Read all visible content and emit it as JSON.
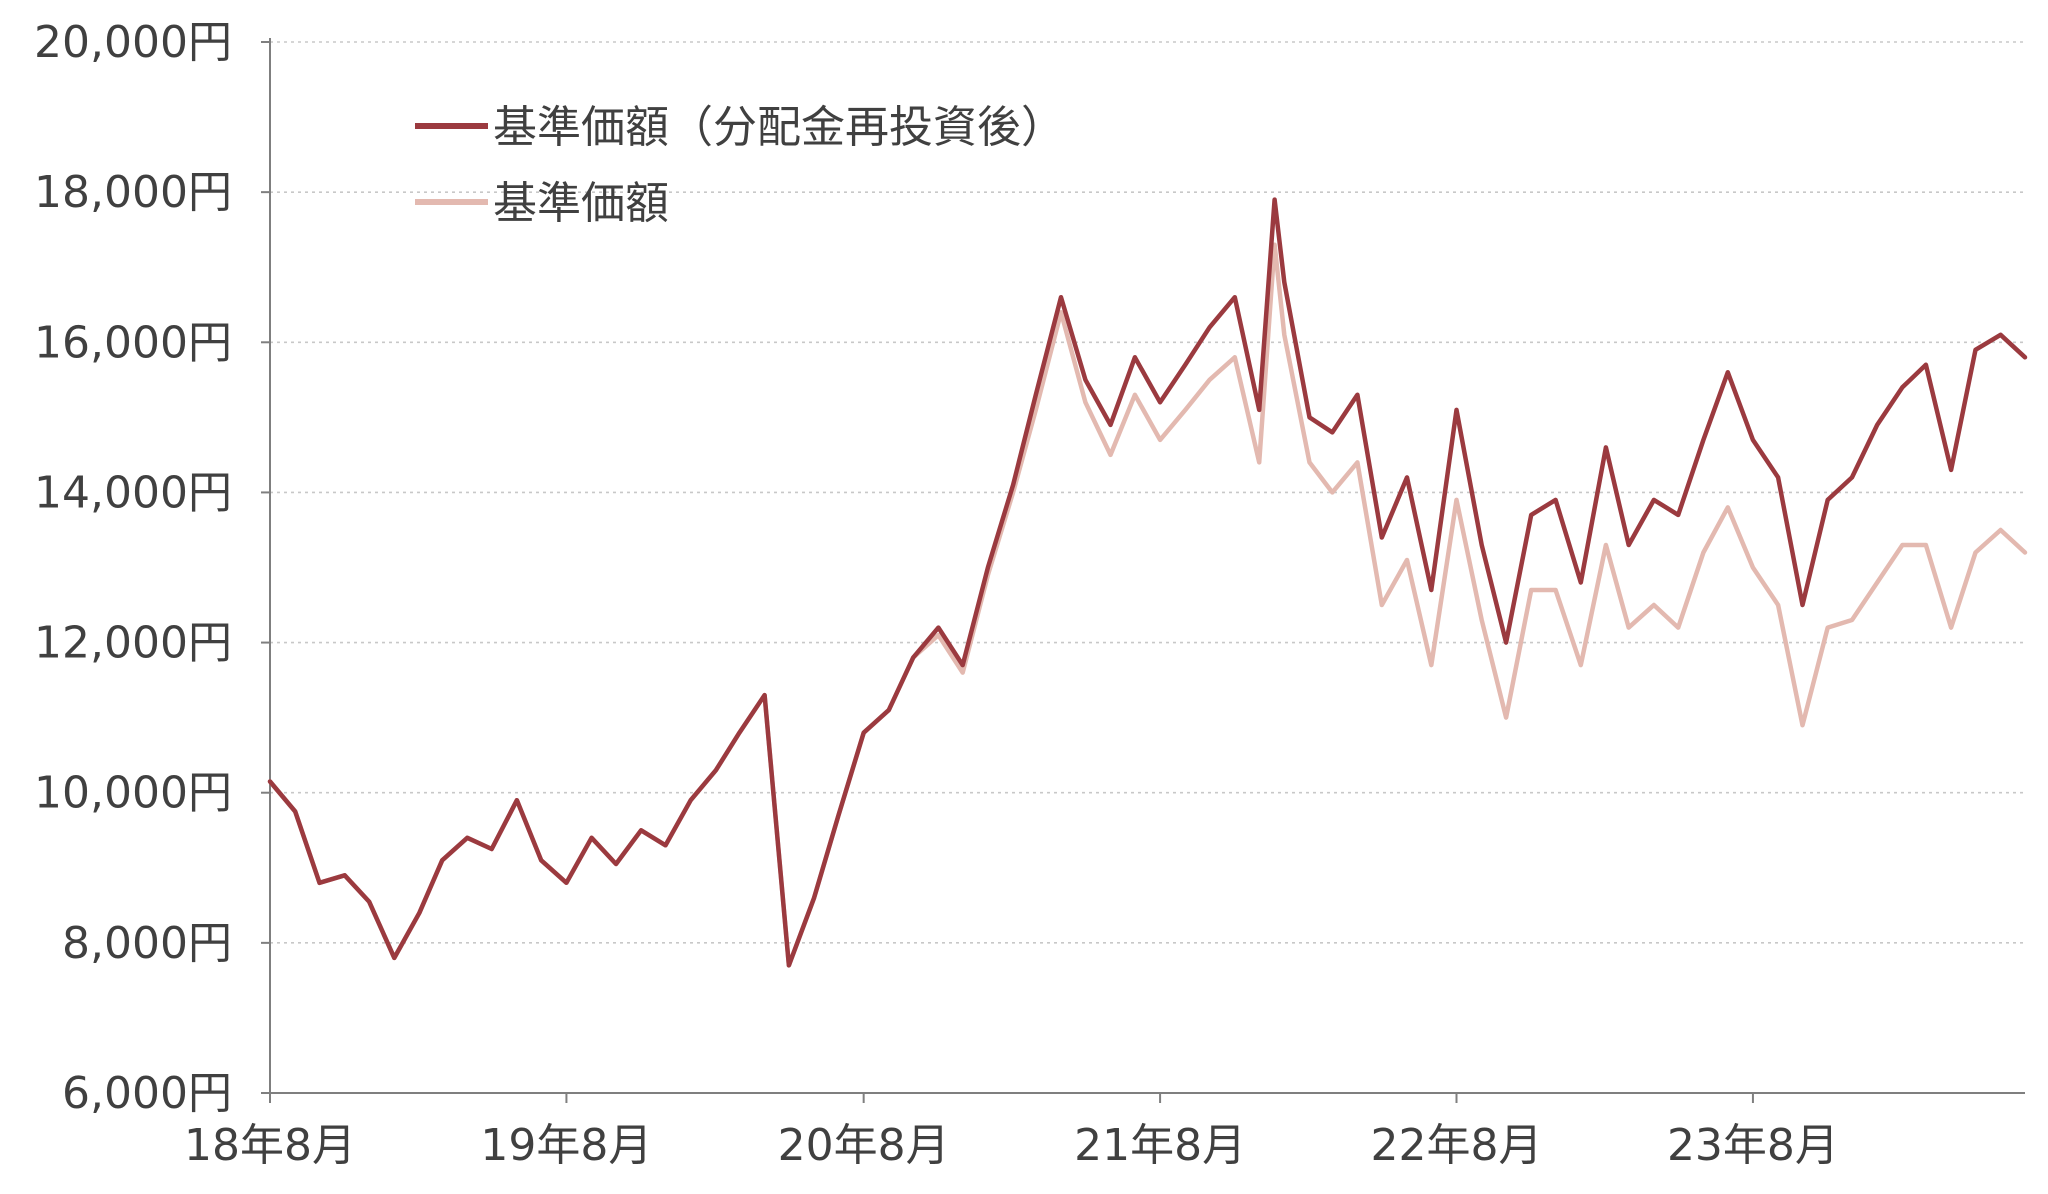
{
  "chart_data": {
    "type": "line",
    "ylim": [
      6000,
      20000
    ],
    "yticks": [
      {
        "value": 6000,
        "label": "6,000円"
      },
      {
        "value": 8000,
        "label": "8,000円"
      },
      {
        "value": 10000,
        "label": "10,000円"
      },
      {
        "value": 12000,
        "label": "12,000円"
      },
      {
        "value": 14000,
        "label": "14,000円"
      },
      {
        "value": 16000,
        "label": "16,000円"
      },
      {
        "value": 18000,
        "label": "18,000円"
      },
      {
        "value": 20000,
        "label": "20,000円"
      }
    ],
    "xlim": [
      "2018-08",
      "2024-07"
    ],
    "xticks": [
      {
        "value": "2018-08",
        "label": "18年8月"
      },
      {
        "value": "2019-08",
        "label": "19年8月"
      },
      {
        "value": "2020-08",
        "label": "20年8月"
      },
      {
        "value": "2021-08",
        "label": "21年8月"
      },
      {
        "value": "2022-08",
        "label": "22年8月"
      },
      {
        "value": "2023-08",
        "label": "23年8月"
      }
    ],
    "grid": true,
    "legend_position": "top-left",
    "series": [
      {
        "name": "基準価額（分配金再投資後）",
        "color": "#9b3a3f",
        "points": [
          [
            "2018-08",
            10150
          ],
          [
            "2018-09",
            9750
          ],
          [
            "2018-10",
            8800
          ],
          [
            "2018-11",
            8900
          ],
          [
            "2018-12",
            8550
          ],
          [
            "2019-01",
            7800
          ],
          [
            "2019-02",
            8400
          ],
          [
            "2019-03",
            9100
          ],
          [
            "2019-04",
            9400
          ],
          [
            "2019-05",
            9250
          ],
          [
            "2019-06",
            9900
          ],
          [
            "2019-07",
            9100
          ],
          [
            "2019-08",
            8800
          ],
          [
            "2019-09",
            9400
          ],
          [
            "2019-10",
            9050
          ],
          [
            "2019-11",
            9500
          ],
          [
            "2019-12",
            9300
          ],
          [
            "2020-01",
            9900
          ],
          [
            "2020-02",
            10300
          ],
          [
            "2020-03",
            10800
          ],
          [
            "2020-04",
            11300
          ],
          [
            "2020-05",
            7700
          ],
          [
            "2020-06",
            8600
          ],
          [
            "2020-07",
            9700
          ],
          [
            "2020-08",
            10800
          ],
          [
            "2020-09",
            11100
          ],
          [
            "2020-10",
            11800
          ],
          [
            "2020-11",
            12200
          ],
          [
            "2020-12",
            11700
          ],
          [
            "2021-01",
            13000
          ],
          [
            "2021-02",
            14100
          ],
          [
            "2021-03",
            15300
          ],
          [
            "2021-04",
            16600
          ],
          [
            "2021-05",
            15500
          ],
          [
            "2021-06",
            14900
          ],
          [
            "2021-07",
            15800
          ],
          [
            "2021-08",
            15200
          ],
          [
            "2021-09",
            15700
          ],
          [
            "2021-10",
            16200
          ],
          [
            "2021-11",
            16600
          ],
          [
            "2021-12",
            15100
          ],
          [
            "2021-12-20",
            17900
          ],
          [
            "2022-01",
            16800
          ],
          [
            "2022-02",
            15000
          ],
          [
            "2022-03",
            14800
          ],
          [
            "2022-04",
            15300
          ],
          [
            "2022-05",
            13400
          ],
          [
            "2022-06",
            14200
          ],
          [
            "2022-07",
            12700
          ],
          [
            "2022-08",
            15100
          ],
          [
            "2022-09",
            13300
          ],
          [
            "2022-10",
            12000
          ],
          [
            "2022-11",
            13700
          ],
          [
            "2022-12",
            13900
          ],
          [
            "2023-01",
            12800
          ],
          [
            "2023-02",
            14600
          ],
          [
            "2023-03",
            13300
          ],
          [
            "2023-04",
            13900
          ],
          [
            "2023-05",
            13700
          ],
          [
            "2023-06",
            14700
          ],
          [
            "2023-07",
            15600
          ],
          [
            "2023-08",
            14700
          ],
          [
            "2023-09",
            14200
          ],
          [
            "2023-10",
            12500
          ],
          [
            "2023-11",
            13900
          ],
          [
            "2023-12",
            14200
          ],
          [
            "2024-01",
            14900
          ],
          [
            "2024-02",
            15400
          ],
          [
            "2024-03",
            15700
          ],
          [
            "2024-04",
            14300
          ],
          [
            "2024-05",
            15900
          ],
          [
            "2024-06",
            16100
          ],
          [
            "2024-07",
            15800
          ]
        ]
      },
      {
        "name": "基準価額",
        "color": "#e3b9b0",
        "points": [
          [
            "2018-08",
            10150
          ],
          [
            "2018-09",
            9750
          ],
          [
            "2018-10",
            8800
          ],
          [
            "2018-11",
            8900
          ],
          [
            "2018-12",
            8550
          ],
          [
            "2019-01",
            7800
          ],
          [
            "2019-02",
            8400
          ],
          [
            "2019-03",
            9100
          ],
          [
            "2019-04",
            9400
          ],
          [
            "2019-05",
            9250
          ],
          [
            "2019-06",
            9900
          ],
          [
            "2019-07",
            9100
          ],
          [
            "2019-08",
            8800
          ],
          [
            "2019-09",
            9400
          ],
          [
            "2019-10",
            9050
          ],
          [
            "2019-11",
            9500
          ],
          [
            "2019-12",
            9300
          ],
          [
            "2020-01",
            9900
          ],
          [
            "2020-02",
            10300
          ],
          [
            "2020-03",
            10800
          ],
          [
            "2020-04",
            11300
          ],
          [
            "2020-05",
            7700
          ],
          [
            "2020-06",
            8600
          ],
          [
            "2020-07",
            9700
          ],
          [
            "2020-08",
            10800
          ],
          [
            "2020-09",
            11100
          ],
          [
            "2020-10",
            11800
          ],
          [
            "2020-11",
            12100
          ],
          [
            "2020-12",
            11600
          ],
          [
            "2021-01",
            12900
          ],
          [
            "2021-02",
            14000
          ],
          [
            "2021-03",
            15100
          ],
          [
            "2021-04",
            16400
          ],
          [
            "2021-05",
            15200
          ],
          [
            "2021-06",
            14500
          ],
          [
            "2021-07",
            15300
          ],
          [
            "2021-08",
            14700
          ],
          [
            "2021-09",
            15100
          ],
          [
            "2021-10",
            15500
          ],
          [
            "2021-11",
            15800
          ],
          [
            "2021-12",
            14400
          ],
          [
            "2021-12-20",
            17300
          ],
          [
            "2022-01",
            16100
          ],
          [
            "2022-02",
            14400
          ],
          [
            "2022-03",
            14000
          ],
          [
            "2022-04",
            14400
          ],
          [
            "2022-05",
            12500
          ],
          [
            "2022-06",
            13100
          ],
          [
            "2022-07",
            11700
          ],
          [
            "2022-08",
            13900
          ],
          [
            "2022-09",
            12300
          ],
          [
            "2022-10",
            11000
          ],
          [
            "2022-11",
            12700
          ],
          [
            "2022-12",
            12700
          ],
          [
            "2023-01",
            11700
          ],
          [
            "2023-02",
            13300
          ],
          [
            "2023-03",
            12200
          ],
          [
            "2023-04",
            12500
          ],
          [
            "2023-05",
            12200
          ],
          [
            "2023-06",
            13200
          ],
          [
            "2023-07",
            13800
          ],
          [
            "2023-08",
            13000
          ],
          [
            "2023-09",
            12500
          ],
          [
            "2023-10",
            10900
          ],
          [
            "2023-11",
            12200
          ],
          [
            "2023-12",
            12300
          ],
          [
            "2024-01",
            12800
          ],
          [
            "2024-02",
            13300
          ],
          [
            "2024-03",
            13300
          ],
          [
            "2024-04",
            12200
          ],
          [
            "2024-05",
            13200
          ],
          [
            "2024-06",
            13500
          ],
          [
            "2024-07",
            13200
          ]
        ]
      }
    ]
  }
}
